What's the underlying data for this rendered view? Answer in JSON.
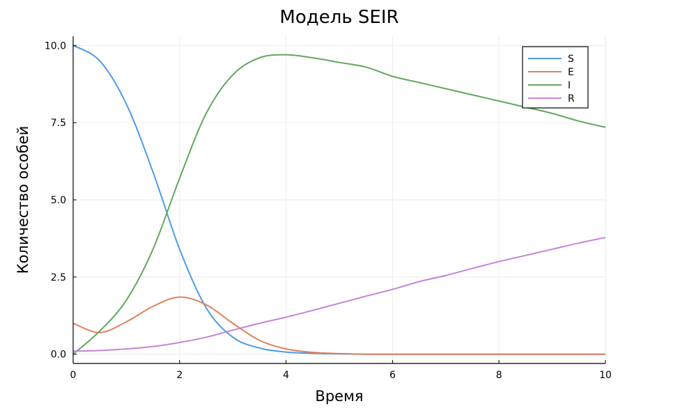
{
  "chart_data": {
    "type": "line",
    "title": "Модель SEIR",
    "xlabel": "Время",
    "ylabel": "Количество особей",
    "xlim": [
      0,
      10
    ],
    "ylim": [
      -0.3,
      10.3
    ],
    "xticks": [
      0,
      2,
      4,
      6,
      8,
      10
    ],
    "xtick_labels": [
      "0",
      "2",
      "4",
      "6",
      "8",
      "10"
    ],
    "yticks": [
      0,
      2.5,
      5,
      7.5,
      10
    ],
    "ytick_labels": [
      "0.0",
      "2.5",
      "5.0",
      "7.5",
      "10.0"
    ],
    "grid": true,
    "legend_position": "top-right",
    "x": [
      0,
      0.5,
      1,
      1.5,
      2,
      2.5,
      3,
      3.5,
      4,
      4.5,
      5,
      5.5,
      6,
      6.5,
      7,
      7.5,
      8,
      8.5,
      9,
      9.5,
      10
    ],
    "series": [
      {
        "name": "S",
        "color": "#4e9be6",
        "values": [
          10.0,
          9.5,
          8.1,
          5.9,
          3.4,
          1.5,
          0.55,
          0.2,
          0.07,
          0.03,
          0.01,
          0.0,
          0.0,
          0.0,
          0.0,
          0.0,
          0.0,
          0.0,
          0.0,
          0.0,
          0.0
        ]
      },
      {
        "name": "E",
        "color": "#e0805a",
        "values": [
          1.0,
          0.7,
          1.05,
          1.55,
          1.85,
          1.6,
          1.0,
          0.45,
          0.17,
          0.06,
          0.02,
          0.0,
          0.0,
          0.0,
          0.0,
          0.0,
          0.0,
          0.0,
          0.0,
          0.0,
          0.0
        ]
      },
      {
        "name": "I",
        "color": "#5fa85b",
        "values": [
          0.0,
          0.75,
          1.75,
          3.4,
          5.7,
          7.8,
          9.05,
          9.6,
          9.7,
          9.6,
          9.45,
          9.3,
          9.0,
          8.8,
          8.6,
          8.4,
          8.2,
          8.0,
          7.8,
          7.55,
          7.35
        ]
      },
      {
        "name": "R",
        "color": "#c783d9",
        "values": [
          0.1,
          0.12,
          0.17,
          0.25,
          0.38,
          0.55,
          0.78,
          1.0,
          1.2,
          1.42,
          1.65,
          1.88,
          2.1,
          2.35,
          2.55,
          2.78,
          3.0,
          3.2,
          3.4,
          3.6,
          3.78
        ]
      }
    ]
  }
}
